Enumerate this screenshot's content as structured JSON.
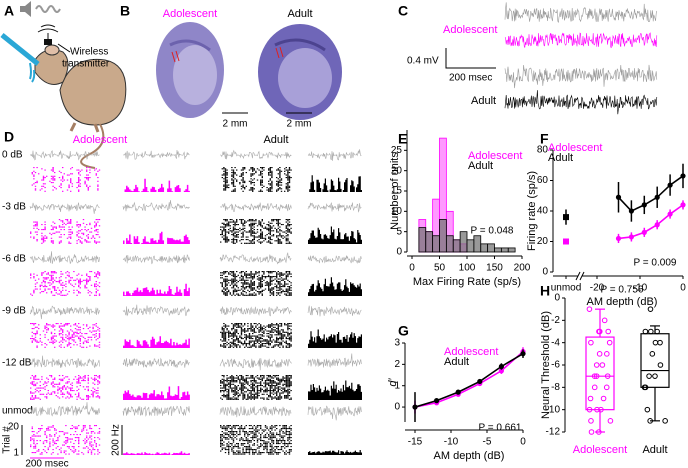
{
  "panels": {
    "A": {
      "label": "A",
      "transmitter": [
        "Wireless",
        "transmitter"
      ]
    },
    "B": {
      "label": "B",
      "adolescent": "Adolescent",
      "adult": "Adult",
      "scale": "2 mm"
    },
    "C": {
      "label": "C",
      "adolescent": "Adolescent",
      "adult": "Adult",
      "voltage_scale": "0.4 mV",
      "time_scale": "200 msec"
    },
    "D": {
      "label": "D",
      "adolescent": "Adolescent",
      "adult": "Adult",
      "rows": [
        "0 dB",
        "-3 dB",
        "-6 dB",
        "-9 dB",
        "-12 dB",
        "unmod"
      ],
      "trial_axis": "Trial #",
      "trial_ticks": [
        20,
        1
      ],
      "time_scale": "200 msec",
      "rate_scale": "200 Hz"
    }
  },
  "chart_data": [
    {
      "panel": "E",
      "type": "histogram",
      "xlabel": "Max Firing Rate (sp/s)",
      "ylabel": "Number of units",
      "bins": [
        0,
        12.5,
        25,
        37.5,
        50,
        62.5,
        75,
        87.5,
        100,
        112.5,
        125,
        137.5,
        150,
        162.5,
        175,
        187.5,
        200
      ],
      "series": [
        {
          "name": "Adolescent",
          "color": "#ff99ff",
          "edgecolor": "#ff00ff",
          "values": [
            0,
            8,
            5,
            13,
            28,
            10,
            3,
            2,
            0,
            0,
            0,
            0,
            0,
            0,
            0,
            0
          ]
        },
        {
          "name": "Adult",
          "color": "#777777",
          "edgecolor": "#000000",
          "values": [
            0,
            6,
            5,
            4,
            8,
            4,
            3,
            5,
            3,
            4,
            2,
            2,
            1,
            1,
            1,
            0
          ]
        }
      ],
      "xlim": [
        0,
        200
      ],
      "xticks": [
        0,
        50,
        100,
        150,
        200
      ],
      "ylim": [
        0,
        30
      ],
      "yticks": [
        0,
        5,
        10,
        15,
        20,
        25
      ],
      "annotation": "P = 0.048"
    },
    {
      "panel": "F",
      "type": "line",
      "xlabel": "AM depth (dB)",
      "ylabel": "Firing rate (sp/s)",
      "extra_category": "unmod",
      "x": [
        -15,
        -12,
        -9,
        -6,
        -3,
        0
      ],
      "series": [
        {
          "name": "Adolescent",
          "color": "#ff00ff",
          "values": [
            22,
            23,
            26,
            31,
            38,
            44
          ],
          "errors": [
            3,
            3,
            3,
            3,
            3,
            3
          ],
          "unmod_value": 20,
          "unmod_error": 1
        },
        {
          "name": "Adult",
          "color": "#000000",
          "values": [
            49,
            40,
            44,
            49,
            57,
            63
          ],
          "errors": [
            10,
            7,
            6,
            7,
            7,
            8
          ],
          "unmod_value": 36,
          "unmod_error": 5
        }
      ],
      "xlim": [
        -20,
        0
      ],
      "xticks": [
        -20,
        -10,
        0
      ],
      "ylim": [
        0,
        80
      ],
      "yticks": [
        0,
        20,
        40,
        60,
        80
      ],
      "annotation": "P = 0.009"
    },
    {
      "panel": "G",
      "type": "line",
      "xlabel": "AM depth (dB)",
      "ylabel": "d′",
      "x": [
        -15,
        -12,
        -9,
        -6,
        -3,
        0
      ],
      "series": [
        {
          "name": "Adolescent",
          "color": "#ff00ff",
          "values": [
            0,
            0.2,
            0.6,
            1.1,
            1.7,
            2.6
          ],
          "errors": [
            0.3,
            0.1,
            0.1,
            0.1,
            0.15,
            0.2
          ]
        },
        {
          "name": "Adult",
          "color": "#000000",
          "values": [
            0,
            0.3,
            0.7,
            1.2,
            1.9,
            2.5
          ],
          "errors": [
            0.7,
            0.1,
            0.1,
            0.1,
            0.15,
            0.2
          ]
        }
      ],
      "xlim": [
        -15,
        0
      ],
      "xticks": [
        -15,
        -10,
        -5,
        0
      ],
      "ylim": [
        -0.7,
        3
      ],
      "yticks": [
        0,
        1,
        2,
        3
      ],
      "annotation": "P = 0.661"
    },
    {
      "panel": "H",
      "type": "box",
      "ylabel": "Neural Threshold (dB)",
      "categories": [
        "Adolescent",
        "Adult"
      ],
      "groups": [
        {
          "color": "#ff00ff",
          "whisker_low": -12,
          "q1": -10,
          "median": -7,
          "q3": -3.5,
          "whisker_high": -1,
          "points": [
            -12,
            -12,
            -11,
            -11,
            -10,
            -10,
            -10,
            -9,
            -9,
            -8,
            -8,
            -7,
            -7,
            -7,
            -6,
            -6,
            -5,
            -5,
            -4,
            -4,
            -3,
            -3,
            -3,
            -2,
            -1
          ]
        },
        {
          "color": "#000000",
          "whisker_low": -11,
          "q1": -8,
          "median": -6.5,
          "q3": -3.2,
          "whisker_high": -2.5,
          "points": [
            -11,
            -11,
            -10,
            -8,
            -8,
            -7,
            -7,
            -6,
            -5,
            -4,
            -4,
            -3,
            -3,
            -3,
            -1
          ]
        }
      ],
      "ylim": [
        -12,
        0
      ],
      "yticks": [
        0,
        -2,
        -4,
        -6,
        -8,
        -10,
        -12
      ],
      "annotation": "P = 0.756"
    }
  ]
}
